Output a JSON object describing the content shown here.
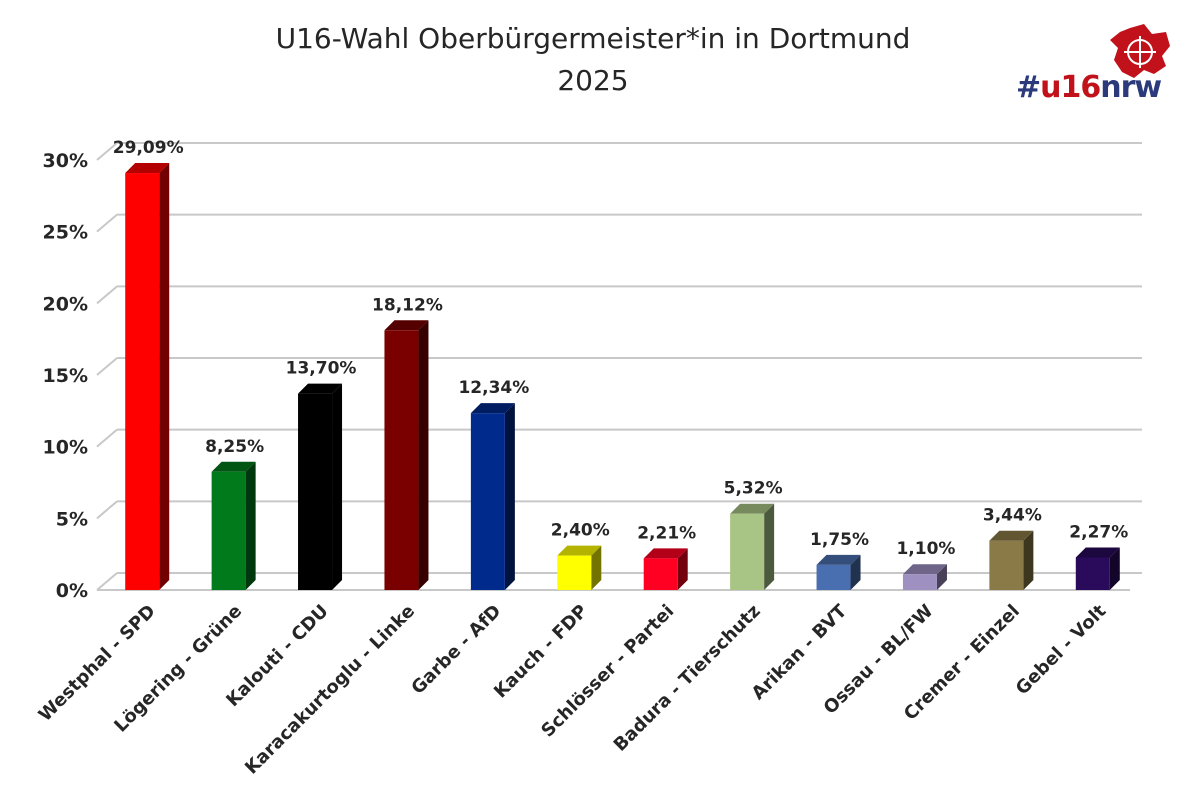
{
  "chart_data": {
    "type": "bar",
    "title_line1": "U16-Wahl Oberbürgermeister*in in Dortmund",
    "title_line2": "2025",
    "ylim": [
      0,
      30
    ],
    "yticks": [
      "0%",
      "5%",
      "10%",
      "15%",
      "20%",
      "25%",
      "30%"
    ],
    "grid": true,
    "categories": [
      "Westphal - SPD",
      "Lögering - Grüne",
      "Kalouti - CDU",
      "Karacakurtoglu - Linke",
      "Garbe - AfD",
      "Kauch - FDP",
      "Schlösser - Partei",
      "Badura - Tierschutz",
      "Arikan - BVT",
      "Ossau - BL/FW",
      "Cremer - Einzel",
      "Gebel - Volt"
    ],
    "values": [
      29.09,
      8.25,
      13.7,
      18.12,
      12.34,
      2.4,
      2.21,
      5.32,
      1.75,
      1.1,
      3.44,
      2.27
    ],
    "data_labels": [
      "29,09%",
      "8,25%",
      "13,70%",
      "18,12%",
      "12,34%",
      "2,40%",
      "2,21%",
      "5,32%",
      "1,75%",
      "1,10%",
      "3,44%",
      "2,27%"
    ],
    "colors": [
      "#ff0000",
      "#007a1a",
      "#000000",
      "#7a0000",
      "#002a8c",
      "#ffff00",
      "#ff0022",
      "#a9c585",
      "#4a6fb0",
      "#9f90c2",
      "#8a7a48",
      "#2a0a5a"
    ]
  },
  "logo": {
    "hash": "#",
    "num": "u16",
    "nrw": "nrw"
  }
}
